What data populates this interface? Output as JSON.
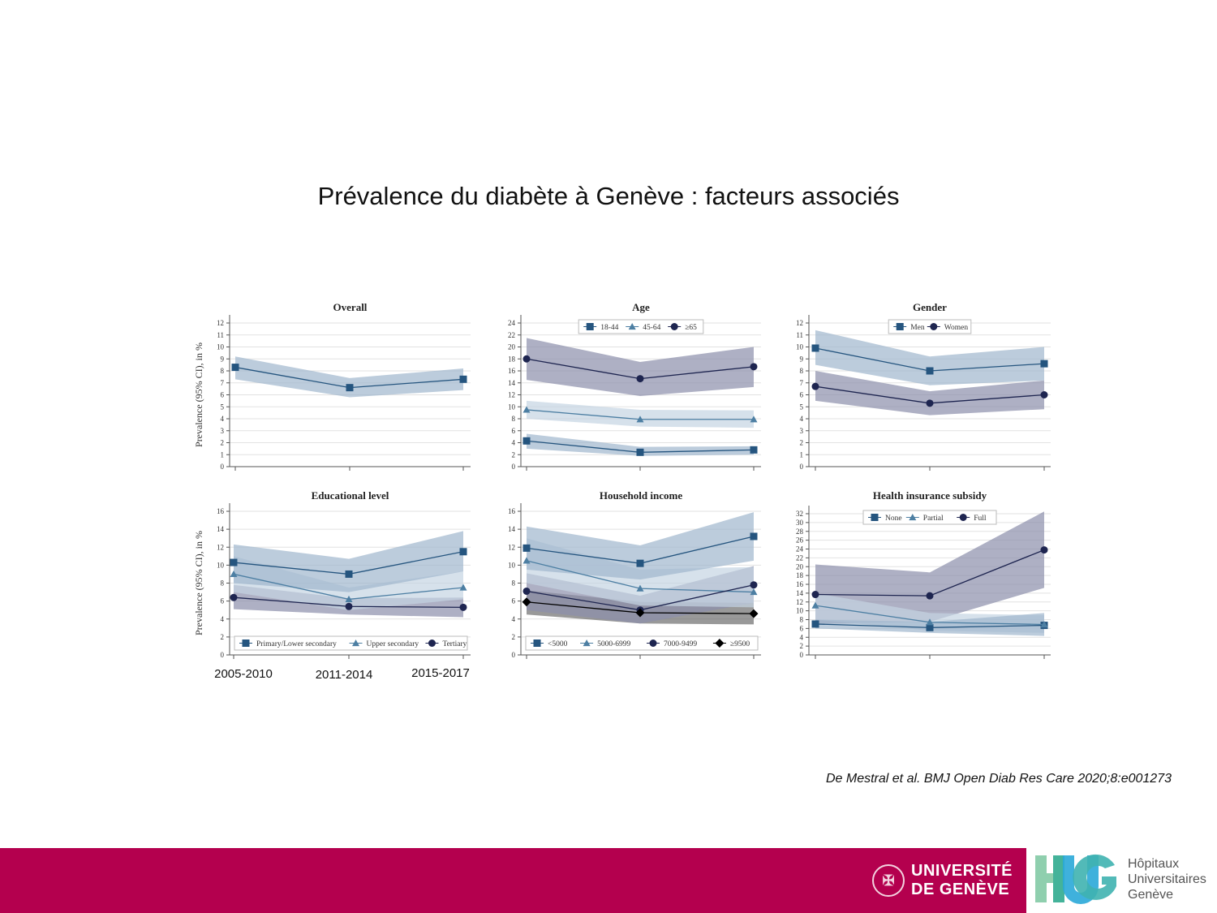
{
  "slide": {
    "title": "Prévalence du diabète à Genève : facteurs associés",
    "citation": "De Mestral et al. BMJ Open Diab Res Care 2020;8:e001273"
  },
  "footer": {
    "unige_logo": "UNIVERSITÉ DE GENÈVE",
    "unige_line1": "UNIVERSITÉ",
    "unige_line2": "DE GENÈVE",
    "hug_logo": "HUG",
    "hug_line1": "Hôpitaux",
    "hug_line2": "Universitaires",
    "hug_line3": "Genève",
    "brand_color": "#b4004e"
  },
  "x_categories": [
    "2005-2010",
    "2011-2014",
    "2015-2017"
  ],
  "ylabel": "Prevalence (95% CI), in %",
  "chart_data": [
    {
      "type": "line",
      "title": "Overall",
      "ylim": [
        0,
        12
      ],
      "ytick_step": 1,
      "grid": true,
      "legend": "none",
      "series": [
        {
          "marker": "square",
          "values": [
            8.3,
            6.6,
            7.3
          ],
          "lower": [
            7.3,
            5.8,
            6.4
          ],
          "upper": [
            9.2,
            7.4,
            8.2
          ]
        }
      ]
    },
    {
      "type": "line",
      "title": "Age",
      "ylim": [
        0,
        24
      ],
      "ytick_step": 2,
      "grid": true,
      "legend": "top",
      "series": [
        {
          "name": "18-44",
          "marker": "square",
          "values": [
            4.3,
            2.4,
            2.8
          ],
          "lower": [
            3.0,
            1.8,
            2.0
          ],
          "upper": [
            5.5,
            3.3,
            3.4
          ]
        },
        {
          "name": "45-64",
          "marker": "triangle",
          "values": [
            9.5,
            7.9,
            7.9
          ],
          "lower": [
            8.0,
            6.7,
            6.5
          ],
          "upper": [
            11.0,
            9.5,
            9.4
          ]
        },
        {
          "name": "≥65",
          "marker": "circle",
          "values": [
            18.0,
            14.7,
            16.7
          ],
          "lower": [
            14.5,
            11.8,
            13.3
          ],
          "upper": [
            21.5,
            17.5,
            20.0
          ]
        }
      ]
    },
    {
      "type": "line",
      "title": "Gender",
      "ylim": [
        0,
        12
      ],
      "ytick_step": 1,
      "grid": true,
      "legend": "top",
      "series": [
        {
          "name": "Men",
          "marker": "square",
          "values": [
            9.9,
            8.0,
            8.6
          ],
          "lower": [
            8.5,
            6.8,
            7.2
          ],
          "upper": [
            11.4,
            9.2,
            10.0
          ]
        },
        {
          "name": "Women",
          "marker": "circle",
          "values": [
            6.7,
            5.3,
            6.0
          ],
          "lower": [
            5.5,
            4.3,
            4.8
          ],
          "upper": [
            8.0,
            6.3,
            7.2
          ]
        }
      ]
    },
    {
      "type": "line",
      "title": "Educational level",
      "ylim": [
        0,
        16
      ],
      "ytick_step": 2,
      "grid": true,
      "legend": "bottom",
      "series": [
        {
          "name": "Primary/Lower secondary",
          "marker": "square",
          "values": [
            10.3,
            9.0,
            11.5
          ],
          "lower": [
            8.0,
            7.0,
            9.3
          ],
          "upper": [
            12.3,
            10.7,
            13.8
          ]
        },
        {
          "name": "Upper secondary",
          "marker": "triangle",
          "values": [
            9.0,
            6.2,
            7.5
          ],
          "lower": [
            7.0,
            5.0,
            6.2
          ],
          "upper": [
            11.0,
            7.5,
            9.3
          ]
        },
        {
          "name": "Tertiary",
          "marker": "circle",
          "values": [
            6.4,
            5.4,
            5.3
          ],
          "lower": [
            5.1,
            4.5,
            4.2
          ],
          "upper": [
            7.8,
            6.3,
            6.4
          ]
        }
      ]
    },
    {
      "type": "line",
      "title": "Household income",
      "ylim": [
        0,
        16
      ],
      "ytick_step": 2,
      "grid": true,
      "legend": "bottom",
      "series": [
        {
          "name": "<5000",
          "marker": "square",
          "values": [
            11.9,
            10.2,
            13.2
          ],
          "lower": [
            9.5,
            8.4,
            10.5
          ],
          "upper": [
            14.3,
            12.2,
            15.9
          ]
        },
        {
          "name": "5000-6999",
          "marker": "triangle",
          "values": [
            10.5,
            7.4,
            7.0
          ],
          "lower": [
            8.0,
            5.5,
            5.3
          ],
          "upper": [
            13.0,
            9.5,
            9.8
          ]
        },
        {
          "name": "7000-9499",
          "marker": "circle",
          "values": [
            7.1,
            5.0,
            7.8
          ],
          "lower": [
            5.0,
            3.5,
            5.8
          ],
          "upper": [
            9.1,
            6.6,
            9.9
          ]
        },
        {
          "name": "≥9500",
          "marker": "diamond",
          "values": [
            5.9,
            4.7,
            4.6
          ],
          "lower": [
            4.5,
            3.5,
            3.4
          ],
          "upper": [
            7.2,
            5.9,
            5.8
          ]
        }
      ]
    },
    {
      "type": "line",
      "title": "Health insurance subsidy",
      "ylim": [
        0,
        32
      ],
      "ytick_step": 2,
      "grid": true,
      "legend": "top",
      "series": [
        {
          "name": "None",
          "marker": "square",
          "values": [
            7.0,
            6.2,
            6.7
          ],
          "lower": [
            6.0,
            5.0,
            4.3
          ],
          "upper": [
            8.0,
            7.5,
            9.5
          ]
        },
        {
          "name": "Partial",
          "marker": "triangle",
          "values": [
            11.2,
            7.4,
            6.9
          ],
          "lower": [
            8.0,
            5.5,
            5.0
          ],
          "upper": [
            14.0,
            9.5,
            9.0
          ]
        },
        {
          "name": "Full",
          "marker": "circle",
          "values": [
            13.7,
            13.4,
            23.8
          ],
          "lower": [
            7.0,
            7.5,
            15.2
          ],
          "upper": [
            20.5,
            18.7,
            32.5
          ]
        }
      ]
    }
  ],
  "colors": {
    "square": {
      "line": "#25557f",
      "band": "#9fb7cd"
    },
    "triangle": {
      "line": "#4d7fa3",
      "band": "#c4d4e2"
    },
    "circle": {
      "line": "#1e2550",
      "band": "#8c8fab"
    },
    "diamond": {
      "line": "#000000",
      "band": "#6e6e6e"
    }
  }
}
